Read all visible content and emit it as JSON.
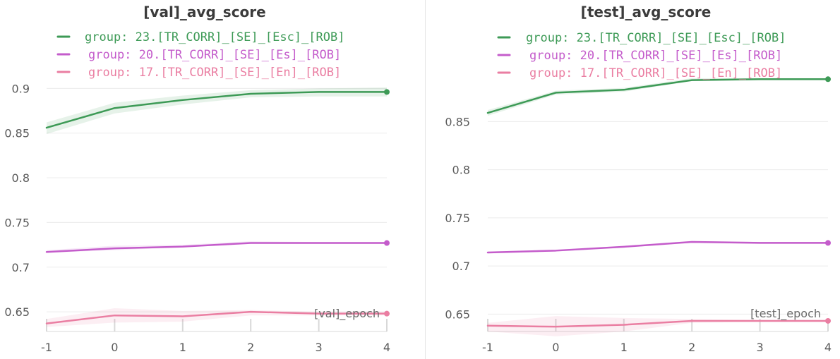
{
  "chart_data": [
    {
      "type": "line",
      "title": "[val]_avg_score",
      "xlabel": "[val]_epoch",
      "ylabel": "",
      "x": [
        -1,
        0,
        1,
        2,
        3,
        4
      ],
      "xticks": [
        "-1",
        "0",
        "1",
        "2",
        "3",
        "4"
      ],
      "yticks": [
        "0.9",
        "0.85",
        "0.8",
        "0.75",
        "0.7",
        "0.65"
      ],
      "ylim": [
        0.628,
        0.92
      ],
      "grid": true,
      "legend_position": "top-left",
      "series": [
        {
          "name": "group: 23.[TR_CORR]_[SE]_[Esc]_[ROB]",
          "color": "#3d9a56",
          "values": [
            0.856,
            0.878,
            0.887,
            0.894,
            0.896,
            0.896
          ],
          "band_low": [
            0.849,
            0.872,
            0.882,
            0.89,
            0.891,
            0.891
          ],
          "band_high": [
            0.862,
            0.884,
            0.892,
            0.898,
            0.9,
            0.901
          ]
        },
        {
          "name": "group: 20.[TR_CORR]_[SE]_[Es]_[ROB]",
          "color": "#c45ccb",
          "values": [
            0.717,
            0.721,
            0.723,
            0.727,
            0.727,
            0.727
          ],
          "band_low": [
            0.716,
            0.719,
            0.722,
            0.726,
            0.726,
            0.726
          ],
          "band_high": [
            0.719,
            0.724,
            0.725,
            0.729,
            0.728,
            0.728
          ]
        },
        {
          "name": "group: 17.[TR_CORR]_[SE]_[En]_[ROB]",
          "color": "#ea7ea2",
          "values": [
            0.637,
            0.646,
            0.645,
            0.65,
            0.648,
            0.648
          ],
          "band_low": [
            0.633,
            0.638,
            0.639,
            0.646,
            0.646,
            0.646
          ],
          "band_high": [
            0.642,
            0.654,
            0.651,
            0.652,
            0.65,
            0.65
          ]
        }
      ]
    },
    {
      "type": "line",
      "title": "[test]_avg_score",
      "xlabel": "[test]_epoch",
      "ylabel": "",
      "x": [
        -1,
        0,
        1,
        2,
        3,
        4
      ],
      "xticks": [
        "-1",
        "0",
        "1",
        "2",
        "3",
        "4"
      ],
      "yticks": [
        "0.85",
        "0.8",
        "0.75",
        "0.7",
        "0.65"
      ],
      "ylim": [
        0.632,
        0.903
      ],
      "grid": true,
      "legend_position": "top-left",
      "series": [
        {
          "name": "group: 23.[TR_CORR]_[SE]_[Esc]_[ROB]",
          "color": "#3d9a56",
          "values": [
            0.859,
            0.88,
            0.883,
            0.893,
            0.894,
            0.894
          ],
          "band_low": [
            0.856,
            0.878,
            0.881,
            0.892,
            0.893,
            0.893
          ],
          "band_high": [
            0.862,
            0.882,
            0.885,
            0.895,
            0.895,
            0.895
          ]
        },
        {
          "name": "group: 20.[TR_CORR]_[SE]_[Es]_[ROB]",
          "color": "#c45ccb",
          "values": [
            0.714,
            0.716,
            0.72,
            0.725,
            0.724,
            0.724
          ],
          "band_low": [
            0.713,
            0.715,
            0.719,
            0.724,
            0.723,
            0.723
          ],
          "band_high": [
            0.715,
            0.717,
            0.721,
            0.726,
            0.725,
            0.725
          ]
        },
        {
          "name": "group: 17.[TR_CORR]_[SE]_[En]_[ROB]",
          "color": "#ea7ea2",
          "values": [
            0.638,
            0.637,
            0.639,
            0.643,
            0.643,
            0.643
          ],
          "band_low": [
            0.632,
            0.627,
            0.632,
            0.641,
            0.642,
            0.642
          ],
          "band_high": [
            0.641,
            0.648,
            0.646,
            0.645,
            0.644,
            0.644
          ]
        }
      ]
    }
  ]
}
